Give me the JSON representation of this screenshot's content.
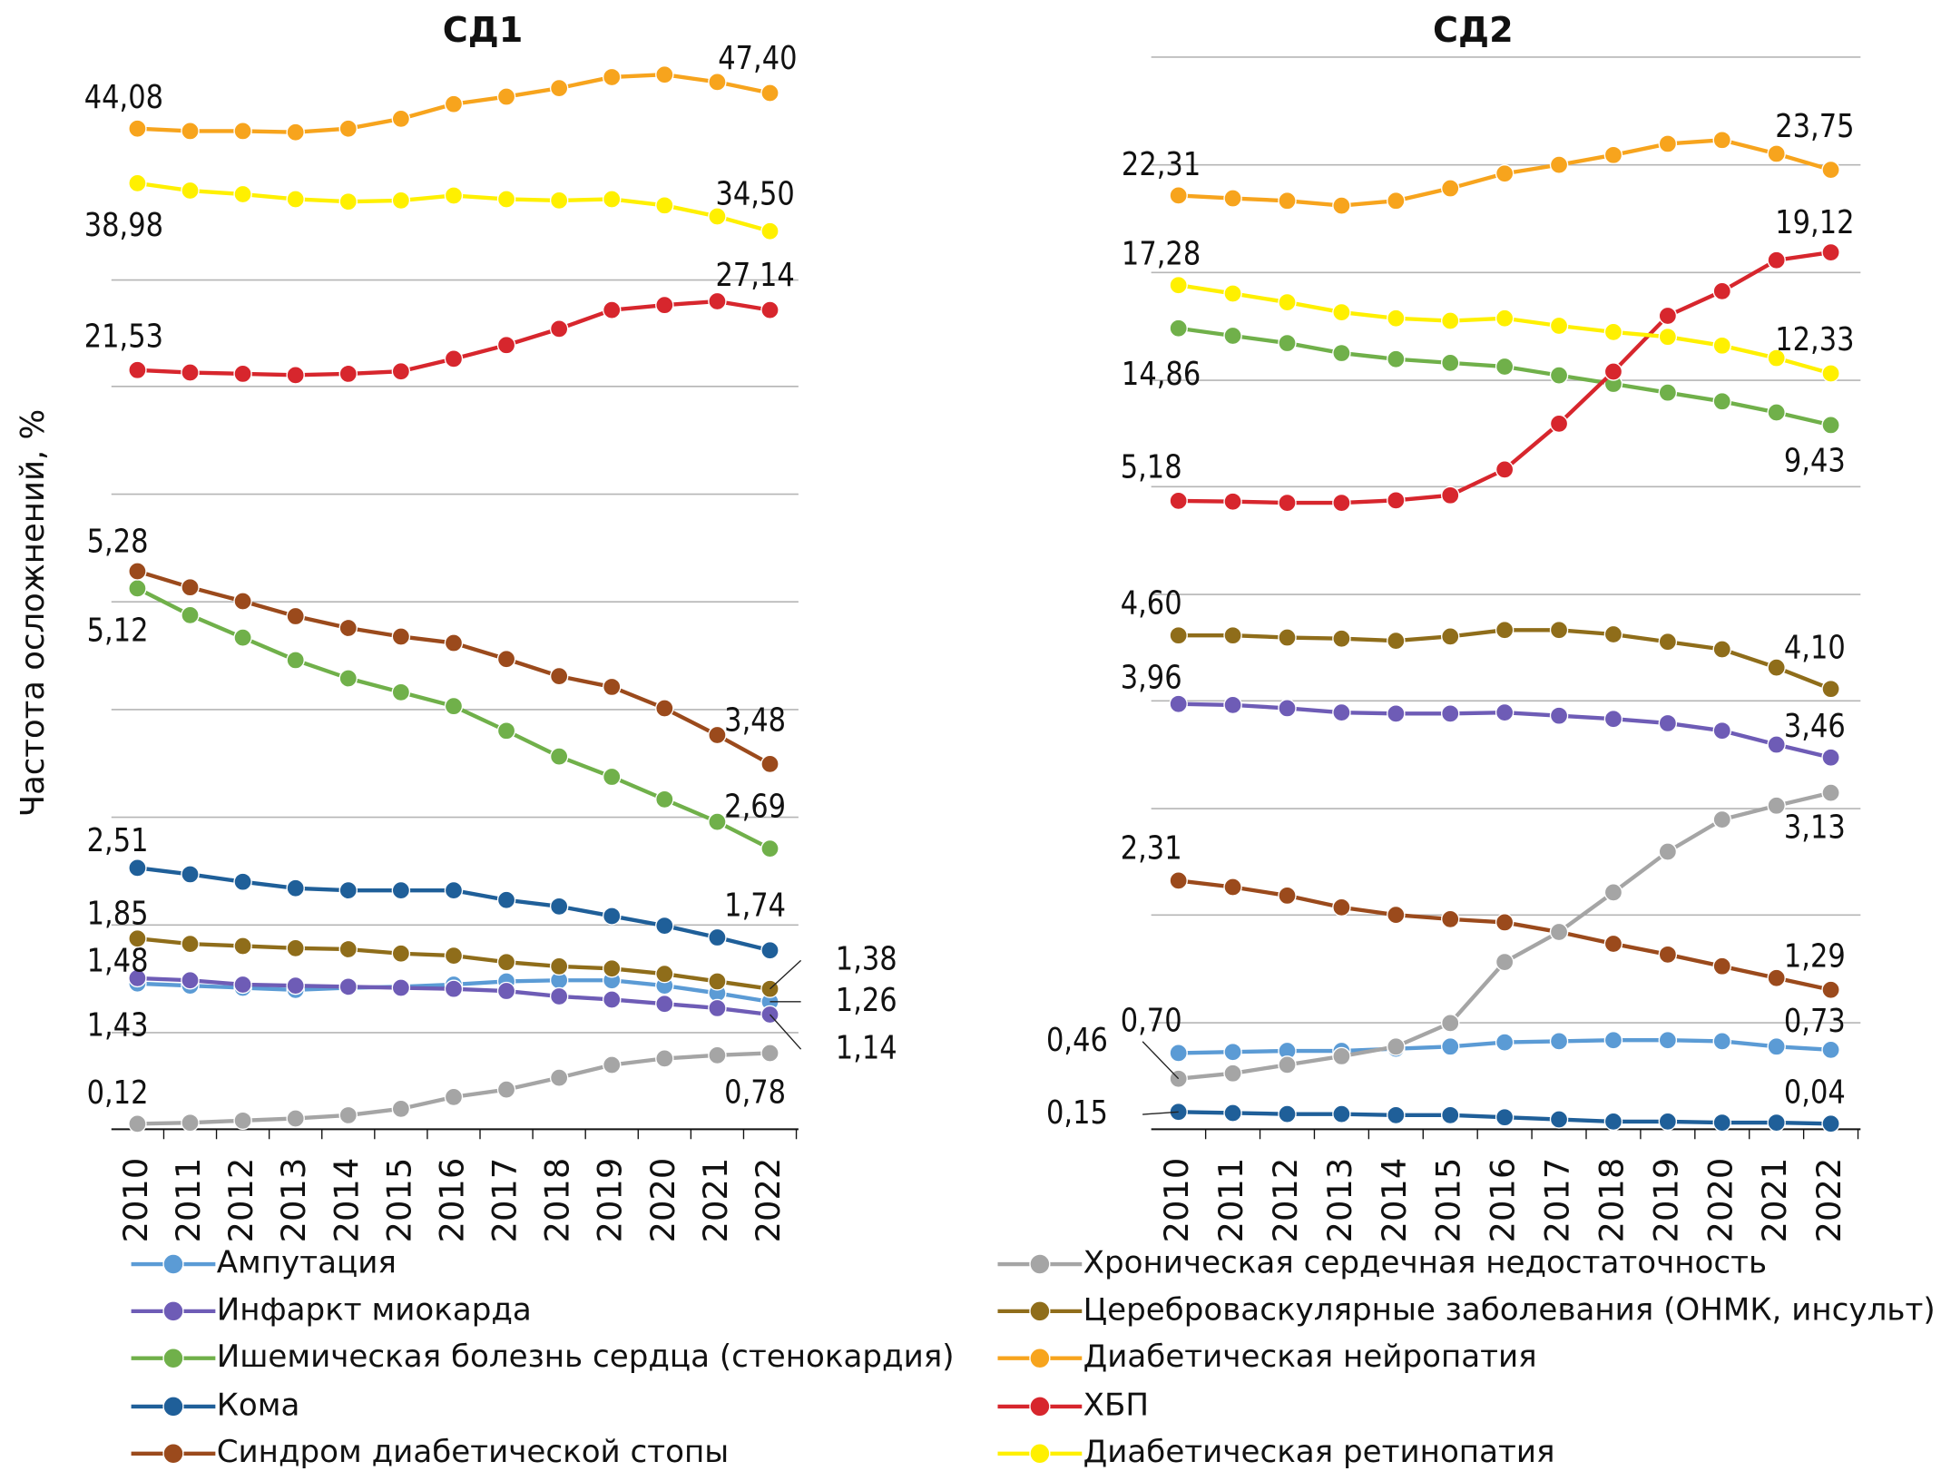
{
  "chart_data": [
    {
      "type": "line",
      "title": "СД1",
      "y_label": "Частота осложнений, %",
      "categories": [
        "2010",
        "2011",
        "2012",
        "2013",
        "2014",
        "2015",
        "2016",
        "2017",
        "2018",
        "2019",
        "2020",
        "2021",
        "2022"
      ],
      "series": [
        {
          "name": "Ампутация",
          "color": "#5b9bd5",
          "values": [
            1.43,
            1.41,
            1.39,
            1.37,
            1.39,
            1.4,
            1.42,
            1.45,
            1.46,
            1.46,
            1.41,
            1.34,
            1.26
          ],
          "value_labels": [
            "1,43",
            null,
            null,
            null,
            null,
            null,
            null,
            null,
            null,
            null,
            null,
            null,
            "1,26"
          ]
        },
        {
          "name": "Инфаркт миокарда",
          "color": "#6e5cb6",
          "values": [
            1.48,
            1.46,
            1.42,
            1.41,
            1.4,
            1.39,
            1.38,
            1.36,
            1.31,
            1.28,
            1.24,
            1.2,
            1.14
          ],
          "value_labels": [
            "1,48",
            null,
            null,
            null,
            null,
            null,
            null,
            null,
            null,
            null,
            null,
            null,
            "1,14"
          ]
        },
        {
          "name": "Ишемическая болезнь сердца (стенокардия)",
          "color": "#70b04a",
          "values": [
            5.12,
            4.87,
            4.66,
            4.45,
            4.28,
            4.15,
            4.02,
            3.79,
            3.55,
            3.36,
            3.15,
            2.94,
            2.69
          ],
          "value_labels": [
            "5,12",
            null,
            null,
            null,
            null,
            null,
            null,
            null,
            null,
            null,
            null,
            null,
            "2,69"
          ]
        },
        {
          "name": "Кома",
          "color": "#1f5f99",
          "values": [
            2.51,
            2.45,
            2.38,
            2.32,
            2.3,
            2.3,
            2.3,
            2.21,
            2.15,
            2.06,
            1.97,
            1.86,
            1.74
          ],
          "value_labels": [
            "2,51",
            null,
            null,
            null,
            null,
            null,
            null,
            null,
            null,
            null,
            null,
            null,
            "1,74"
          ]
        },
        {
          "name": "Синдром диабетической стопы",
          "color": "#9b4a1c",
          "values": [
            5.28,
            5.13,
            5.0,
            4.86,
            4.75,
            4.67,
            4.61,
            4.46,
            4.3,
            4.2,
            4.0,
            3.75,
            3.48
          ],
          "value_labels": [
            "5,28",
            null,
            null,
            null,
            null,
            null,
            null,
            null,
            null,
            null,
            null,
            null,
            "3,48"
          ]
        },
        {
          "name": "Хроническая сердечная недостаточность",
          "color": "#a5a5a5",
          "values": [
            0.12,
            0.13,
            0.15,
            0.17,
            0.2,
            0.26,
            0.37,
            0.44,
            0.55,
            0.67,
            0.73,
            0.76,
            0.78
          ],
          "value_labels": [
            "0,12",
            null,
            null,
            null,
            null,
            null,
            null,
            null,
            null,
            null,
            null,
            null,
            "0,78"
          ]
        },
        {
          "name": "Цереброваскулярные заболевания (ОНМК, инсульт)",
          "color": "#8f6d1a",
          "values": [
            1.85,
            1.8,
            1.78,
            1.76,
            1.75,
            1.71,
            1.69,
            1.63,
            1.59,
            1.57,
            1.52,
            1.45,
            1.38
          ],
          "value_labels": [
            "1,85",
            null,
            null,
            null,
            null,
            null,
            null,
            null,
            null,
            null,
            null,
            null,
            "1,38"
          ]
        },
        {
          "name": "Диабетическая нейропатия",
          "color": "#f7a41d",
          "values": [
            44.08,
            43.85,
            43.85,
            43.74,
            44.08,
            45.0,
            46.37,
            47.06,
            47.86,
            48.89,
            49.12,
            48.43,
            47.4
          ],
          "value_labels": [
            "44,08",
            null,
            null,
            null,
            null,
            null,
            null,
            null,
            null,
            null,
            null,
            null,
            "47,40"
          ]
        },
        {
          "name": "ХБП",
          "color": "#d7262d",
          "label_color": "#d7262d",
          "values": [
            21.53,
            21.3,
            21.18,
            21.06,
            21.18,
            21.41,
            22.58,
            23.86,
            25.38,
            27.14,
            27.6,
            27.95,
            27.14
          ],
          "value_labels": [
            "21,53",
            null,
            null,
            null,
            null,
            null,
            null,
            null,
            null,
            null,
            null,
            null,
            "27,14"
          ]
        },
        {
          "name": "Диабетическая ретинопатия",
          "color": "#fff000",
          "values": [
            38.98,
            38.29,
            37.95,
            37.49,
            37.26,
            37.37,
            37.83,
            37.49,
            37.37,
            37.49,
            36.91,
            35.88,
            34.5
          ],
          "value_labels": [
            "38,98",
            null,
            null,
            null,
            null,
            null,
            null,
            null,
            null,
            null,
            null,
            null,
            "34,50"
          ]
        }
      ]
    },
    {
      "type": "line",
      "title": "СД2",
      "categories": [
        "2010",
        "2011",
        "2012",
        "2013",
        "2014",
        "2015",
        "2016",
        "2017",
        "2018",
        "2019",
        "2020",
        "2021",
        "2022"
      ],
      "series": [
        {
          "name": "Ампутация",
          "color": "#5b9bd5",
          "values": [
            0.7,
            0.71,
            0.72,
            0.72,
            0.74,
            0.76,
            0.8,
            0.81,
            0.82,
            0.82,
            0.81,
            0.76,
            0.73
          ],
          "value_labels": [
            "0,70",
            null,
            null,
            null,
            null,
            null,
            null,
            null,
            null,
            null,
            null,
            null,
            "0,73"
          ]
        },
        {
          "name": "Инфаркт миокарда",
          "color": "#6e5cb6",
          "values": [
            3.96,
            3.95,
            3.92,
            3.88,
            3.87,
            3.87,
            3.88,
            3.85,
            3.82,
            3.78,
            3.71,
            3.58,
            3.46
          ],
          "value_labels": [
            "3,96",
            null,
            null,
            null,
            null,
            null,
            null,
            null,
            null,
            null,
            null,
            null,
            "3,46"
          ]
        },
        {
          "name": "Ишемическая болезнь сердца (стенокардия)",
          "color": "#70b04a",
          "values": [
            14.86,
            14.44,
            14.03,
            13.47,
            13.13,
            12.92,
            12.71,
            12.22,
            11.74,
            11.25,
            10.76,
            10.14,
            9.43
          ],
          "value_labels": [
            "14,86",
            null,
            null,
            null,
            null,
            null,
            null,
            null,
            null,
            null,
            null,
            null,
            "9,43"
          ]
        },
        {
          "name": "Кома",
          "color": "#1f5f99",
          "values": [
            0.15,
            0.14,
            0.13,
            0.13,
            0.12,
            0.12,
            0.1,
            0.08,
            0.06,
            0.06,
            0.05,
            0.05,
            0.04
          ],
          "value_labels": [
            "0,15",
            null,
            null,
            null,
            null,
            null,
            null,
            null,
            null,
            null,
            null,
            null,
            "0,04"
          ]
        },
        {
          "name": "Синдром диабетической стопы",
          "color": "#9b4a1c",
          "values": [
            2.31,
            2.25,
            2.17,
            2.06,
            1.99,
            1.95,
            1.92,
            1.83,
            1.72,
            1.62,
            1.51,
            1.4,
            1.29
          ],
          "value_labels": [
            "2,31",
            null,
            null,
            null,
            null,
            null,
            null,
            null,
            null,
            null,
            null,
            null,
            "1,29"
          ]
        },
        {
          "name": "Хроническая сердечная недостаточность",
          "color": "#a5a5a5",
          "values": [
            0.46,
            0.51,
            0.59,
            0.67,
            0.76,
            0.98,
            1.55,
            1.83,
            2.2,
            2.58,
            2.88,
            3.01,
            3.13
          ],
          "value_labels": [
            "0,46",
            null,
            null,
            null,
            null,
            null,
            null,
            null,
            null,
            null,
            null,
            null,
            "3,13"
          ]
        },
        {
          "name": "Цереброваскулярные заболевания (ОНМК, инсульт)",
          "color": "#8f6d1a",
          "values": [
            4.6,
            4.6,
            4.58,
            4.57,
            4.55,
            4.59,
            4.65,
            4.65,
            4.61,
            4.54,
            4.47,
            4.3,
            4.1
          ],
          "value_labels": [
            "4,60",
            null,
            null,
            null,
            null,
            null,
            null,
            null,
            null,
            null,
            null,
            null,
            "4,10"
          ]
        },
        {
          "name": "Диабетическая нейропатия",
          "color": "#f7a41d",
          "values": [
            22.31,
            22.15,
            22.01,
            21.74,
            22.01,
            22.71,
            23.54,
            24.03,
            24.58,
            25.21,
            25.42,
            24.65,
            23.75
          ],
          "value_labels": [
            "22,31",
            null,
            null,
            null,
            null,
            null,
            null,
            null,
            null,
            null,
            null,
            null,
            "23,75"
          ]
        },
        {
          "name": "ХБП",
          "color": "#d7262d",
          "label_color": "#d7262d",
          "values": [
            5.18,
            5.14,
            5.07,
            5.07,
            5.21,
            5.49,
            6.94,
            9.51,
            12.43,
            15.56,
            16.94,
            18.68,
            19.12
          ],
          "value_labels": [
            "5,18",
            null,
            null,
            null,
            null,
            null,
            null,
            null,
            null,
            null,
            null,
            null,
            "19,12"
          ]
        },
        {
          "name": "Диабетическая ретинопатия",
          "color": "#fff000",
          "values": [
            17.28,
            16.81,
            16.32,
            15.76,
            15.42,
            15.28,
            15.42,
            15.0,
            14.65,
            14.38,
            13.89,
            13.19,
            12.33
          ],
          "value_labels": [
            "17,28",
            null,
            null,
            null,
            null,
            null,
            null,
            null,
            null,
            null,
            null,
            null,
            "12,33"
          ]
        }
      ]
    }
  ]
}
